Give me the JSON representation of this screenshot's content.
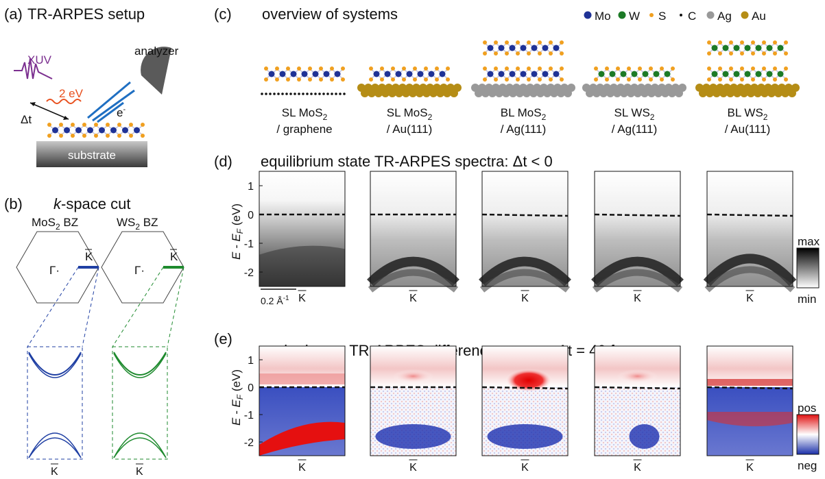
{
  "panel_a": {
    "label": "(a)",
    "title": "TR-ARPES setup",
    "xuv": "XUV",
    "pump": "2 eV",
    "analyzer": "analyzer",
    "electron": "e",
    "electron_sup": "-",
    "delay": "Δt",
    "substrate": "substrate",
    "colors": {
      "xuv": "#7b2f8f",
      "pump": "#e8501e",
      "electron": "#1f6fc2"
    }
  },
  "panel_b": {
    "label": "(b)",
    "title_k": "k",
    "title_rest": "-space cut",
    "bz": [
      {
        "name": "MoS",
        "sub": "2",
        "suffix": " BZ",
        "gamma": "Γ",
        "k": "K",
        "color": "#1f3fa3"
      },
      {
        "name": "WS",
        "sub": "2",
        "suffix": " BZ",
        "gamma": "Γ",
        "k": "K",
        "color": "#1e8a2e"
      }
    ],
    "bottom_k": [
      "K",
      "K"
    ]
  },
  "panel_c": {
    "label": "(c)",
    "title": "overview of systems",
    "legend": [
      {
        "name": "Mo",
        "color": "#1f3296",
        "dot": "large"
      },
      {
        "name": "W",
        "color": "#1c7a26",
        "dot": "large"
      },
      {
        "name": "S",
        "color": "#f0a020",
        "dot": "small"
      },
      {
        "name": "C",
        "color": "#111111",
        "dot": "tiny"
      },
      {
        "name": "Ag",
        "color": "#999999",
        "dot": "large"
      },
      {
        "name": "Au",
        "color": "#b58d16",
        "dot": "large"
      }
    ],
    "systems": [
      {
        "line1_a": "SL MoS",
        "sub": "2",
        "line2": "/ graphene"
      },
      {
        "line1_a": "SL MoS",
        "sub": "2",
        "line2": "/ Au(111)"
      },
      {
        "line1_a": "BL MoS",
        "sub": "2",
        "line2": "/ Ag(111)"
      },
      {
        "line1_a": "SL WS",
        "sub": "2",
        "line2": "/ Ag(111)"
      },
      {
        "line1_a": "BL WS",
        "sub": "2",
        "line2": "/ Au(111)"
      }
    ]
  },
  "panel_d": {
    "label": "(d)",
    "title": "equilibrium state TR-ARPES spectra: Δt < 0",
    "ylabel_main": "E - E",
    "ylabel_sub": "F",
    "ylabel_unit": " (eV)",
    "yticks": [
      "1",
      "0",
      "-1",
      "-2"
    ],
    "xtick": "K",
    "scalebar": "0.2 Å",
    "scalebar_sup": "-1",
    "colorbar": {
      "max": "max",
      "min": "min"
    }
  },
  "panel_e": {
    "label": "(e)",
    "title": "excited state TR-ARPES difference spectra: Δt = 40 fs",
    "ylabel_main": "E - E",
    "ylabel_sub": "F",
    "ylabel_unit": " (eV)",
    "yticks": [
      "1",
      "0",
      "-1",
      "-2"
    ],
    "xtick": "K",
    "colorbar": {
      "pos": "pos",
      "neg": "neg"
    }
  }
}
